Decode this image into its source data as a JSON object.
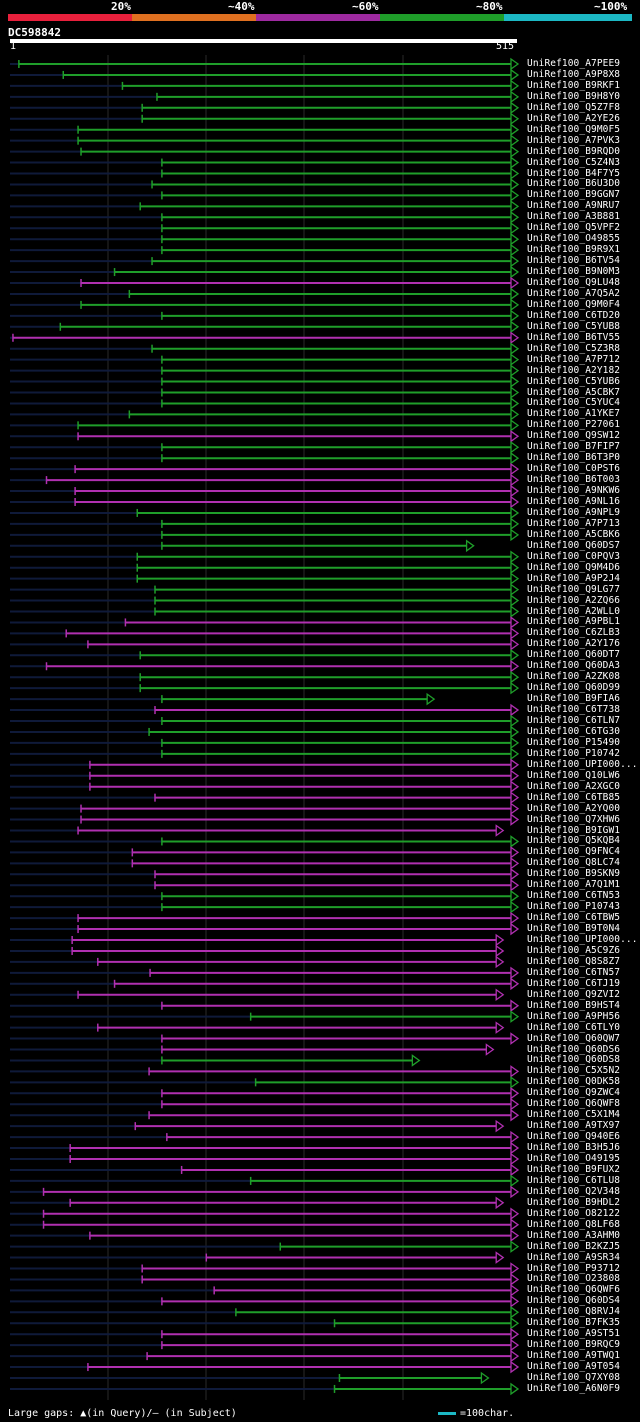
{
  "legend": {
    "segments": [
      {
        "color": "#e8203c"
      },
      {
        "color": "#e07020"
      },
      {
        "color": "#9e2aa0"
      },
      {
        "color": "#1f9e2a"
      },
      {
        "color": "#1cb8c4"
      }
    ],
    "labels": [
      "20%",
      "~40%",
      "~60%",
      "~80%",
      "~100%"
    ]
  },
  "query": {
    "name": "DC598842",
    "start": "1",
    "end": "515"
  },
  "footer": {
    "gaps_text": "Large gaps: ▲(in Query)/– (in Subject)",
    "scale_text": "=100char."
  },
  "colors": {
    "green": "#1f9e2a",
    "magenta": "#b030b0",
    "dark": "#0f1a3a",
    "tri": "#ffff66"
  },
  "chart_data": {
    "type": "alignment-overview",
    "query_length": 515,
    "hits": [
      {
        "name": "UniRef100_A7PEE9",
        "start": 10,
        "end": 515,
        "color": "green",
        "arrow": true
      },
      {
        "name": "UniRef100_A9P8X8",
        "start": 55,
        "end": 515,
        "color": "green",
        "arrow": true
      },
      {
        "name": "UniRef100_B9RKF1",
        "start": 115,
        "end": 515,
        "color": "green",
        "arrow": true
      },
      {
        "name": "UniRef100_B9H8Y0",
        "start": 150,
        "end": 515,
        "color": "green",
        "arrow": true
      },
      {
        "name": "UniRef100_Q5Z7F8",
        "start": 135,
        "end": 515,
        "color": "green",
        "arrow": true
      },
      {
        "name": "UniRef100_A2YE26",
        "start": 135,
        "end": 515,
        "color": "green",
        "arrow": true
      },
      {
        "name": "UniRef100_Q9M0F5",
        "start": 70,
        "end": 515,
        "color": "green",
        "arrow": true
      },
      {
        "name": "UniRef100_A7PVK3",
        "start": 70,
        "end": 515,
        "color": "green",
        "arrow": true
      },
      {
        "name": "UniRef100_B9RQD0",
        "start": 73,
        "end": 515,
        "color": "green",
        "arrow": true
      },
      {
        "name": "UniRef100_C5Z4N3",
        "start": 155,
        "end": 515,
        "color": "green",
        "arrow": true
      },
      {
        "name": "UniRef100_B4F7Y5",
        "start": 155,
        "end": 515,
        "color": "green",
        "arrow": true
      },
      {
        "name": "UniRef100_B6U3D0",
        "start": 145,
        "end": 515,
        "color": "green",
        "arrow": true
      },
      {
        "name": "UniRef100_B9GGN7",
        "start": 155,
        "end": 515,
        "color": "green",
        "arrow": true
      },
      {
        "name": "UniRef100_A9NRU7",
        "start": 133,
        "end": 515,
        "color": "green",
        "arrow": true
      },
      {
        "name": "UniRef100_A3B881",
        "start": 155,
        "end": 515,
        "color": "green",
        "arrow": true
      },
      {
        "name": "UniRef100_Q5VPF2",
        "start": 155,
        "end": 515,
        "color": "green",
        "arrow": true
      },
      {
        "name": "UniRef100_O49855",
        "start": 155,
        "end": 515,
        "color": "green",
        "arrow": true
      },
      {
        "name": "UniRef100_B9R9X1",
        "start": 155,
        "end": 515,
        "color": "green",
        "arrow": true
      },
      {
        "name": "UniRef100_B6TV54",
        "start": 145,
        "end": 515,
        "color": "green",
        "arrow": true
      },
      {
        "name": "UniRef100_B9N0M3",
        "start": 107,
        "end": 515,
        "color": "green",
        "arrow": true
      },
      {
        "name": "UniRef100_Q9LU48",
        "start": 73,
        "end": 515,
        "color": "magenta",
        "arrow": true
      },
      {
        "name": "UniRef100_A7Q5A2",
        "start": 122,
        "end": 515,
        "color": "green",
        "arrow": true
      },
      {
        "name": "UniRef100_Q9M0F4",
        "start": 73,
        "end": 515,
        "color": "green",
        "arrow": true
      },
      {
        "name": "UniRef100_C6TD20",
        "start": 155,
        "end": 515,
        "color": "green",
        "arrow": true
      },
      {
        "name": "UniRef100_C5YUB8",
        "start": 52,
        "end": 515,
        "color": "green",
        "arrow": true
      },
      {
        "name": "UniRef100_B6TV55",
        "start": 4,
        "end": 515,
        "color": "magenta",
        "arrow": true
      },
      {
        "name": "UniRef100_C5Z3R8",
        "start": 145,
        "end": 515,
        "color": "green",
        "arrow": true
      },
      {
        "name": "UniRef100_A7P712",
        "start": 155,
        "end": 515,
        "color": "green",
        "arrow": true
      },
      {
        "name": "UniRef100_A2Y182",
        "start": 155,
        "end": 515,
        "color": "green",
        "arrow": true
      },
      {
        "name": "UniRef100_C5YUB6",
        "start": 155,
        "end": 515,
        "color": "green",
        "arrow": true
      },
      {
        "name": "UniRef100_A5CBK7",
        "start": 155,
        "end": 515,
        "color": "green",
        "arrow": true
      },
      {
        "name": "UniRef100_C5YUC4",
        "start": 155,
        "end": 515,
        "color": "green",
        "arrow": true
      },
      {
        "name": "UniRef100_A1YKE7",
        "start": 122,
        "end": 515,
        "color": "green",
        "arrow": true
      },
      {
        "name": "UniRef100_P27061",
        "start": 70,
        "end": 515,
        "color": "green",
        "arrow": true
      },
      {
        "name": "UniRef100_Q9SW12",
        "start": 70,
        "end": 515,
        "color": "magenta",
        "arrow": true
      },
      {
        "name": "UniRef100_B7FIP7",
        "start": 155,
        "end": 515,
        "color": "green",
        "arrow": true
      },
      {
        "name": "UniRef100_B6T3P0",
        "start": 155,
        "end": 515,
        "color": "green",
        "arrow": true
      },
      {
        "name": "UniRef100_C0PST6",
        "start": 67,
        "end": 515,
        "color": "magenta",
        "arrow": true
      },
      {
        "name": "UniRef100_B6T003",
        "start": 38,
        "end": 515,
        "color": "magenta",
        "arrow": true
      },
      {
        "name": "UniRef100_A9NKW6",
        "start": 67,
        "end": 515,
        "color": "magenta",
        "arrow": true
      },
      {
        "name": "UniRef100_A9NL16",
        "start": 67,
        "end": 515,
        "color": "magenta",
        "arrow": true
      },
      {
        "name": "UniRef100_A9NPL9",
        "start": 130,
        "end": 515,
        "color": "green",
        "arrow": true
      },
      {
        "name": "UniRef100_A7P713",
        "start": 155,
        "end": 515,
        "color": "green",
        "arrow": true
      },
      {
        "name": "UniRef100_A5CBK6",
        "start": 155,
        "end": 515,
        "color": "green",
        "arrow": true
      },
      {
        "name": "UniRef100_Q60DS7",
        "start": 155,
        "end": 470,
        "color": "green",
        "arrow": true
      },
      {
        "name": "UniRef100_C0PQV3",
        "start": 130,
        "end": 515,
        "color": "green",
        "arrow": true
      },
      {
        "name": "UniRef100_Q9M4D6",
        "start": 130,
        "end": 515,
        "color": "green",
        "arrow": true
      },
      {
        "name": "UniRef100_A9P2J4",
        "start": 130,
        "end": 515,
        "color": "green",
        "arrow": true
      },
      {
        "name": "UniRef100_Q9LG77",
        "start": 148,
        "end": 515,
        "color": "green",
        "arrow": true
      },
      {
        "name": "UniRef100_A2ZQ66",
        "start": 148,
        "end": 515,
        "color": "green",
        "arrow": true
      },
      {
        "name": "UniRef100_A2WLL0",
        "start": 148,
        "end": 515,
        "color": "green",
        "arrow": true
      },
      {
        "name": "UniRef100_A9PBL1",
        "start": 118,
        "end": 515,
        "color": "magenta",
        "arrow": true
      },
      {
        "name": "UniRef100_C6ZLB3",
        "start": 58,
        "end": 515,
        "color": "magenta",
        "arrow": true
      },
      {
        "name": "UniRef100_A2Y176",
        "start": 80,
        "end": 515,
        "color": "magenta",
        "arrow": true
      },
      {
        "name": "UniRef100_Q60DT7",
        "start": 133,
        "end": 515,
        "color": "green",
        "arrow": true
      },
      {
        "name": "UniRef100_Q60DA3",
        "start": 38,
        "end": 515,
        "color": "magenta",
        "arrow": true
      },
      {
        "name": "UniRef100_A2ZK08",
        "start": 133,
        "end": 515,
        "color": "green",
        "arrow": true
      },
      {
        "name": "UniRef100_Q60D99",
        "start": 133,
        "end": 515,
        "color": "green",
        "arrow": true
      },
      {
        "name": "UniRef100_B9FIA6",
        "start": 155,
        "end": 430,
        "color": "green",
        "arrow": true
      },
      {
        "name": "UniRef100_C6T738",
        "start": 148,
        "end": 515,
        "color": "magenta",
        "arrow": true
      },
      {
        "name": "UniRef100_C6TLN7",
        "start": 155,
        "end": 515,
        "color": "green",
        "arrow": true
      },
      {
        "name": "UniRef100_C6TG30",
        "start": 142,
        "end": 515,
        "color": "green",
        "arrow": true
      },
      {
        "name": "UniRef100_P15490",
        "start": 155,
        "end": 515,
        "color": "green",
        "arrow": true
      },
      {
        "name": "UniRef100_P10742",
        "start": 155,
        "end": 515,
        "color": "green",
        "arrow": true
      },
      {
        "name": "UniRef100_UPI000...",
        "start": 82,
        "end": 515,
        "color": "magenta",
        "arrow": true
      },
      {
        "name": "UniRef100_Q10LW6",
        "start": 82,
        "end": 515,
        "color": "magenta",
        "arrow": true
      },
      {
        "name": "UniRef100_A2XGC0",
        "start": 82,
        "end": 515,
        "color": "magenta",
        "arrow": true
      },
      {
        "name": "UniRef100_C6TB85",
        "start": 148,
        "end": 515,
        "color": "magenta",
        "arrow": true
      },
      {
        "name": "UniRef100_A2YQ00",
        "start": 73,
        "end": 515,
        "color": "magenta",
        "arrow": true
      },
      {
        "name": "UniRef100_Q7XHW6",
        "start": 73,
        "end": 515,
        "color": "magenta",
        "arrow": true
      },
      {
        "name": "UniRef100_B9IGW1",
        "start": 70,
        "end": 500,
        "color": "magenta",
        "arrow": true
      },
      {
        "name": "UniRef100_Q5KQB4",
        "start": 155,
        "end": 515,
        "color": "green",
        "arrow": true
      },
      {
        "name": "UniRef100_Q9FNC4",
        "start": 125,
        "end": 515,
        "color": "magenta",
        "arrow": true
      },
      {
        "name": "UniRef100_Q8LC74",
        "start": 125,
        "end": 515,
        "color": "magenta",
        "arrow": true
      },
      {
        "name": "UniRef100_B9SKN9",
        "start": 148,
        "end": 515,
        "color": "magenta",
        "arrow": true
      },
      {
        "name": "UniRef100_A7Q1M1",
        "start": 148,
        "end": 515,
        "color": "magenta",
        "arrow": true
      },
      {
        "name": "UniRef100_C6TN53",
        "start": 155,
        "end": 515,
        "color": "green",
        "arrow": true
      },
      {
        "name": "UniRef100_P10743",
        "start": 155,
        "end": 515,
        "color": "green",
        "arrow": true
      },
      {
        "name": "UniRef100_C6TBW5",
        "start": 70,
        "end": 515,
        "color": "magenta",
        "arrow": true
      },
      {
        "name": "UniRef100_B9T0N4",
        "start": 70,
        "end": 515,
        "color": "magenta",
        "arrow": true
      },
      {
        "name": "UniRef100_UPI000...",
        "start": 64,
        "end": 500,
        "color": "magenta",
        "arrow": true
      },
      {
        "name": "UniRef100_A5C9Z6",
        "start": 64,
        "end": 500,
        "color": "magenta",
        "arrow": true
      },
      {
        "name": "UniRef100_Q8S8Z7",
        "start": 90,
        "end": 500,
        "color": "magenta",
        "arrow": true
      },
      {
        "name": "UniRef100_C6TN57",
        "start": 143,
        "end": 515,
        "color": "magenta",
        "arrow": true
      },
      {
        "name": "UniRef100_C6TJ19",
        "start": 107,
        "end": 515,
        "color": "magenta",
        "arrow": true
      },
      {
        "name": "UniRef100_Q9ZVI2",
        "start": 70,
        "end": 500,
        "color": "magenta",
        "arrow": true
      },
      {
        "name": "UniRef100_B9HST4",
        "start": 155,
        "end": 515,
        "color": "magenta",
        "arrow": true
      },
      {
        "name": "UniRef100_A9PH56",
        "start": 245,
        "end": 515,
        "color": "green",
        "arrow": true
      },
      {
        "name": "UniRef100_C6TLY0",
        "start": 90,
        "end": 500,
        "color": "magenta",
        "arrow": true
      },
      {
        "name": "UniRef100_Q60QW7",
        "start": 155,
        "end": 515,
        "color": "magenta",
        "arrow": true
      },
      {
        "name": "UniRef100_Q60DS6",
        "start": 155,
        "end": 490,
        "color": "magenta",
        "arrow": true
      },
      {
        "name": "UniRef100_Q60DS8",
        "start": 155,
        "end": 415,
        "color": "green",
        "arrow": true
      },
      {
        "name": "UniRef100_C5X5N2",
        "start": 142,
        "end": 515,
        "color": "magenta",
        "arrow": true
      },
      {
        "name": "UniRef100_Q0DK58",
        "start": 250,
        "end": 515,
        "color": "green",
        "arrow": true
      },
      {
        "name": "UniRef100_Q9ZWC4",
        "start": 155,
        "end": 515,
        "color": "magenta",
        "arrow": true
      },
      {
        "name": "UniRef100_Q6QWF8",
        "start": 155,
        "end": 515,
        "color": "magenta",
        "arrow": true
      },
      {
        "name": "UniRef100_C5X1M4",
        "start": 142,
        "end": 515,
        "color": "magenta",
        "arrow": true
      },
      {
        "name": "UniRef100_A9TX97",
        "start": 128,
        "end": 500,
        "color": "magenta",
        "arrow": true
      },
      {
        "name": "UniRef100_Q940E6",
        "start": 160,
        "end": 515,
        "color": "magenta",
        "arrow": true
      },
      {
        "name": "UniRef100_B3H5J6",
        "start": 62,
        "end": 515,
        "color": "magenta",
        "arrow": true
      },
      {
        "name": "UniRef100_O49195",
        "start": 62,
        "end": 515,
        "color": "magenta",
        "arrow": true
      },
      {
        "name": "UniRef100_B9FUX2",
        "start": 175,
        "end": 515,
        "color": "magenta",
        "arrow": true
      },
      {
        "name": "UniRef100_C6TLU8",
        "start": 245,
        "end": 515,
        "color": "green",
        "arrow": true
      },
      {
        "name": "UniRef100_Q2V348",
        "start": 35,
        "end": 515,
        "color": "magenta",
        "arrow": true
      },
      {
        "name": "UniRef100_B9HDL2",
        "start": 62,
        "end": 500,
        "color": "magenta",
        "arrow": true
      },
      {
        "name": "UniRef100_O82122",
        "start": 35,
        "end": 515,
        "color": "magenta",
        "arrow": true
      },
      {
        "name": "UniRef100_Q8LF68",
        "start": 35,
        "end": 515,
        "color": "magenta",
        "arrow": true
      },
      {
        "name": "UniRef100_A3AHM0",
        "start": 82,
        "end": 515,
        "color": "magenta",
        "arrow": true
      },
      {
        "name": "UniRef100_B2KZJ5",
        "start": 275,
        "end": 515,
        "color": "green",
        "arrow": true
      },
      {
        "name": "UniRef100_A9SR34",
        "start": 200,
        "end": 500,
        "color": "magenta",
        "arrow": true
      },
      {
        "name": "UniRef100_P93712",
        "start": 135,
        "end": 515,
        "color": "magenta",
        "arrow": true
      },
      {
        "name": "UniRef100_O23808",
        "start": 135,
        "end": 515,
        "color": "magenta",
        "arrow": true
      },
      {
        "name": "UniRef100_Q6QWF6",
        "start": 208,
        "end": 515,
        "color": "magenta",
        "arrow": true
      },
      {
        "name": "UniRef100_Q60DS4",
        "start": 155,
        "end": 515,
        "color": "magenta",
        "arrow": true
      },
      {
        "name": "UniRef100_Q8RVJ4",
        "start": 230,
        "end": 515,
        "color": "green",
        "arrow": true
      },
      {
        "name": "UniRef100_B7FK35",
        "start": 330,
        "end": 515,
        "color": "green",
        "arrow": true
      },
      {
        "name": "UniRef100_A9ST51",
        "start": 155,
        "end": 515,
        "color": "magenta",
        "arrow": true
      },
      {
        "name": "UniRef100_B9RQC9",
        "start": 155,
        "end": 515,
        "color": "magenta",
        "arrow": true
      },
      {
        "name": "UniRef100_A9TWQ1",
        "start": 140,
        "end": 515,
        "color": "magenta",
        "arrow": true
      },
      {
        "name": "UniRef100_A9T054",
        "start": 80,
        "end": 515,
        "color": "magenta",
        "arrow": true
      },
      {
        "name": "UniRef100_Q7XY08",
        "start": 335,
        "end": 485,
        "color": "green",
        "arrow": true
      },
      {
        "name": "UniRef100_A6N0F9",
        "start": 330,
        "end": 515,
        "color": "green",
        "arrow": true
      }
    ]
  }
}
